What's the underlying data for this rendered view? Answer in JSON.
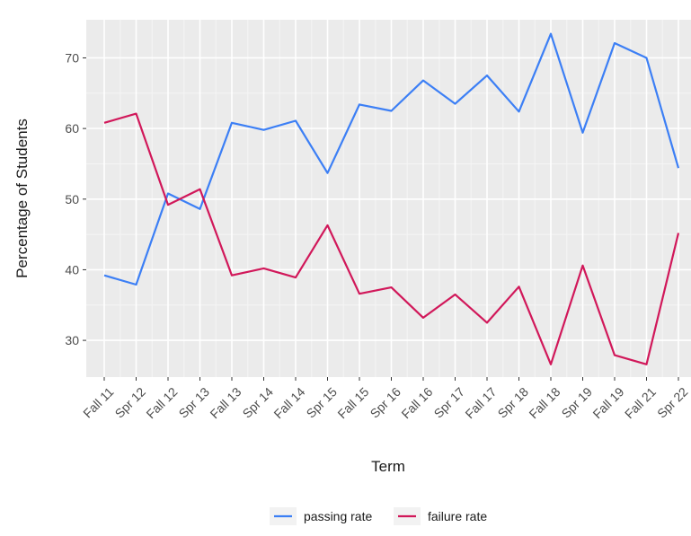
{
  "chart_data": {
    "type": "line",
    "title": "",
    "xlabel": "Term",
    "ylabel": "Percentage of Students",
    "categories": [
      "Fall 11",
      "Spr 12",
      "Fall 12",
      "Spr 13",
      "Fall 13",
      "Spr 14",
      "Fall 14",
      "Spr 15",
      "Fall 15",
      "Spr 16",
      "Fall 16",
      "Spr 17",
      "Fall 17",
      "Spr 18",
      "Fall 18",
      "Spr 19",
      "Fall 19",
      "Fall 21",
      "Spr 22"
    ],
    "yticks": [
      30,
      40,
      50,
      60,
      70
    ],
    "ylim": [
      24.8,
      75.4
    ],
    "grid": true,
    "legend_position": "bottom",
    "series": [
      {
        "name": "passing rate",
        "color": "#3c7ff5",
        "values": [
          39.2,
          37.9,
          50.8,
          48.6,
          60.8,
          59.8,
          61.1,
          53.7,
          63.4,
          62.5,
          66.8,
          63.5,
          67.5,
          62.4,
          73.4,
          59.4,
          72.1,
          70.0,
          54.4
        ]
      },
      {
        "name": "failure rate",
        "color": "#d1185a",
        "values": [
          60.8,
          62.1,
          49.2,
          51.4,
          39.2,
          40.2,
          38.9,
          46.3,
          36.6,
          37.5,
          33.2,
          36.5,
          32.5,
          37.6,
          26.6,
          40.6,
          27.9,
          26.6,
          45.2
        ]
      }
    ]
  }
}
